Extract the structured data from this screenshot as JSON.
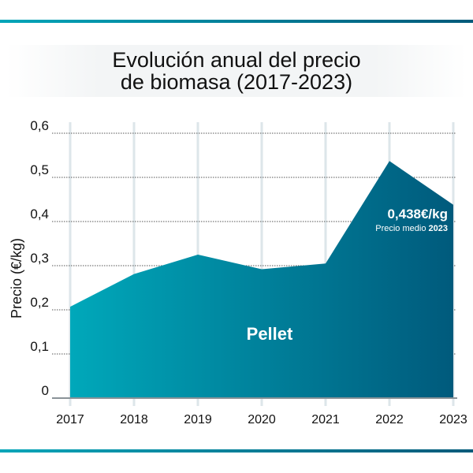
{
  "chart_data": {
    "type": "area",
    "title_line1": "Evolución anual del precio",
    "title_line2": "de biomasa (2017-2023)",
    "ylabel": "Precio (€/kg)",
    "xlabel": "",
    "categories": [
      "2017",
      "2018",
      "2019",
      "2020",
      "2021",
      "2022",
      "2023"
    ],
    "series": [
      {
        "name": "Pellet",
        "values": [
          0.207,
          0.281,
          0.325,
          0.292,
          0.305,
          0.537,
          0.438
        ]
      }
    ],
    "yticks": [
      "0",
      "0,1",
      "0,2",
      "0,3",
      "0,4",
      "0,5",
      "0,6"
    ],
    "ylim": [
      0,
      0.6
    ],
    "grid": "horizontal dotted, vertical light per year",
    "annotation": {
      "value": "0,438€/kg",
      "label": "Precio medio",
      "year": "2023"
    },
    "colors": {
      "gradient_start": "#00a8ba",
      "gradient_end": "#005a7c",
      "grid": "#dde6ea",
      "rule": "#0088a0"
    }
  }
}
